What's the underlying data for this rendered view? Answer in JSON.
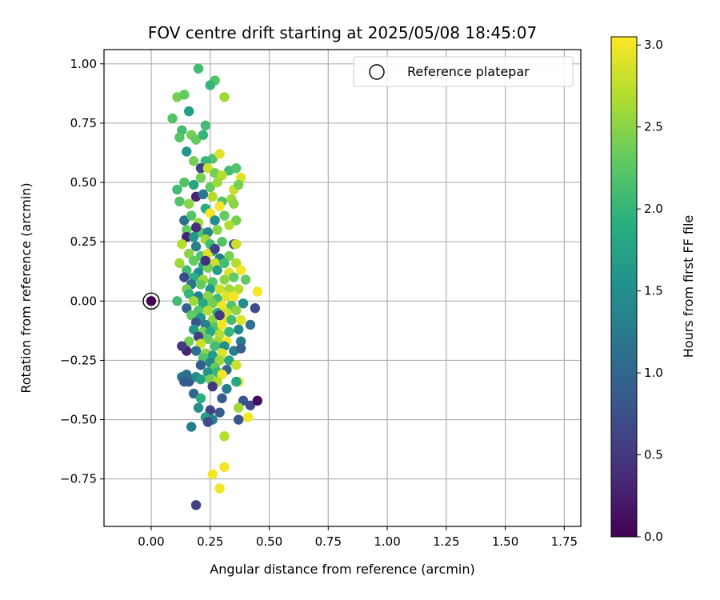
{
  "chart_data": {
    "type": "scatter",
    "title": "FOV centre drift starting at 2025/05/08 18:45:07",
    "xlabel": "Angular distance from reference (arcmin)",
    "ylabel": "Rotation from reference (arcmin)",
    "xlim": [
      -0.2,
      1.82
    ],
    "ylim": [
      -0.95,
      1.06
    ],
    "xticks": [
      "0.00",
      "0.25",
      "0.50",
      "0.75",
      "1.00",
      "1.25",
      "1.50",
      "1.75"
    ],
    "xtick_values": [
      0,
      0.25,
      0.5,
      0.75,
      1.0,
      1.25,
      1.5,
      1.75
    ],
    "yticks": [
      "−0.75",
      "−0.50",
      "−0.25",
      "0.00",
      "0.25",
      "0.50",
      "0.75",
      "1.00"
    ],
    "ytick_values": [
      -0.75,
      -0.5,
      -0.25,
      0,
      0.25,
      0.5,
      0.75,
      1.0
    ],
    "grid": true,
    "legend": {
      "placement": "top-right",
      "entries": [
        "Reference platepar"
      ]
    },
    "reference_point": {
      "x": 0.0,
      "y": 0.0,
      "hours": 0.0
    },
    "colorbar": {
      "label": "Hours from first FF file",
      "colormap": "viridis",
      "range": [
        0.0,
        3.05
      ],
      "ticks": [
        "0.0",
        "0.5",
        "1.0",
        "1.5",
        "2.0",
        "2.5",
        "3.0"
      ],
      "tick_values": [
        0,
        0.5,
        1.0,
        1.5,
        2.0,
        2.5,
        3.0
      ]
    },
    "series": [
      {
        "points": [
          [
            0.19,
            -0.86,
            0.6
          ],
          [
            0.2,
            0.98,
            2.1
          ],
          [
            0.27,
            0.93,
            2.2
          ],
          [
            0.25,
            0.91,
            2.0
          ],
          [
            0.31,
            0.86,
            2.6
          ],
          [
            0.11,
            0.86,
            2.4
          ],
          [
            0.14,
            0.87,
            2.3
          ],
          [
            0.09,
            0.77,
            2.2
          ],
          [
            0.16,
            0.8,
            1.7
          ],
          [
            0.13,
            0.72,
            2.1
          ],
          [
            0.17,
            0.7,
            2.4
          ],
          [
            0.23,
            0.74,
            2.1
          ],
          [
            0.12,
            0.69,
            2.2
          ],
          [
            0.19,
            0.68,
            2.3
          ],
          [
            0.22,
            0.7,
            2.0
          ],
          [
            0.15,
            0.63,
            1.6
          ],
          [
            0.18,
            0.59,
            2.4
          ],
          [
            0.26,
            0.6,
            2.2
          ],
          [
            0.29,
            0.62,
            2.9
          ],
          [
            0.23,
            0.59,
            2.0
          ],
          [
            0.33,
            0.55,
            2.1
          ],
          [
            0.36,
            0.56,
            2.2
          ],
          [
            0.38,
            0.52,
            2.9
          ],
          [
            0.21,
            0.56,
            0.6
          ],
          [
            0.24,
            0.56,
            2.8
          ],
          [
            0.27,
            0.54,
            2.4
          ],
          [
            0.3,
            0.53,
            2.7
          ],
          [
            0.14,
            0.5,
            2.2
          ],
          [
            0.18,
            0.49,
            1.8
          ],
          [
            0.21,
            0.52,
            2.4
          ],
          [
            0.11,
            0.47,
            2.1
          ],
          [
            0.25,
            0.48,
            2.3
          ],
          [
            0.28,
            0.5,
            2.6
          ],
          [
            0.35,
            0.47,
            2.8
          ],
          [
            0.37,
            0.49,
            2.4
          ],
          [
            0.19,
            0.44,
            0.3
          ],
          [
            0.22,
            0.45,
            1.2
          ],
          [
            0.12,
            0.42,
            2.2
          ],
          [
            0.16,
            0.41,
            2.5
          ],
          [
            0.26,
            0.44,
            2.7
          ],
          [
            0.3,
            0.42,
            2.2
          ],
          [
            0.34,
            0.43,
            2.6
          ],
          [
            0.29,
            0.4,
            3.0
          ],
          [
            0.35,
            0.41,
            2.5
          ],
          [
            0.23,
            0.39,
            1.9
          ],
          [
            0.25,
            0.37,
            3.0
          ],
          [
            0.31,
            0.36,
            2.3
          ],
          [
            0.14,
            0.34,
            1.1
          ],
          [
            0.17,
            0.36,
            2.2
          ],
          [
            0.2,
            0.33,
            2.6
          ],
          [
            0.27,
            0.34,
            1.5
          ],
          [
            0.36,
            0.34,
            2.4
          ],
          [
            0.33,
            0.32,
            2.7
          ],
          [
            0.15,
            0.3,
            2.3
          ],
          [
            0.21,
            0.29,
            2.2
          ],
          [
            0.24,
            0.29,
            1.4
          ],
          [
            0.28,
            0.3,
            2.5
          ],
          [
            0.15,
            0.27,
            0.3
          ],
          [
            0.18,
            0.27,
            1.6
          ],
          [
            0.23,
            0.26,
            2.6
          ],
          [
            0.25,
            0.24,
            2.1
          ],
          [
            0.3,
            0.25,
            2.2
          ],
          [
            0.35,
            0.24,
            0.8
          ],
          [
            0.36,
            0.24,
            2.8
          ],
          [
            0.13,
            0.24,
            2.7
          ],
          [
            0.19,
            0.23,
            1.3
          ],
          [
            0.26,
            0.21,
            1.9
          ],
          [
            0.16,
            0.2,
            2.5
          ],
          [
            0.21,
            0.19,
            2.2
          ],
          [
            0.24,
            0.2,
            2.9
          ],
          [
            0.33,
            0.19,
            2.4
          ],
          [
            0.29,
            0.18,
            1.3
          ],
          [
            0.18,
            0.17,
            2.3
          ],
          [
            0.22,
            0.15,
            1.8
          ],
          [
            0.12,
            0.16,
            2.6
          ],
          [
            0.27,
            0.16,
            2.8
          ],
          [
            0.31,
            0.16,
            2.1
          ],
          [
            0.36,
            0.16,
            2.7
          ],
          [
            0.15,
            0.13,
            2.1
          ],
          [
            0.2,
            0.12,
            1.5
          ],
          [
            0.24,
            0.14,
            2.4
          ],
          [
            0.28,
            0.13,
            1.7
          ],
          [
            0.33,
            0.12,
            2.9
          ],
          [
            0.38,
            0.13,
            3.0
          ],
          [
            0.14,
            0.1,
            0.7
          ],
          [
            0.18,
            0.1,
            1.9
          ],
          [
            0.22,
            0.09,
            2.6
          ],
          [
            0.26,
            0.08,
            2.2
          ],
          [
            0.31,
            0.09,
            2.5
          ],
          [
            0.35,
            0.1,
            2.3
          ],
          [
            0.4,
            0.09,
            2.3
          ],
          [
            0.17,
            0.07,
            1.1
          ],
          [
            0.21,
            0.07,
            2.3
          ],
          [
            0.15,
            0.05,
            2.4
          ],
          [
            0.25,
            0.05,
            1.6
          ],
          [
            0.29,
            0.05,
            2.8
          ],
          [
            0.33,
            0.05,
            2.6
          ],
          [
            0.37,
            0.05,
            2.7
          ],
          [
            0.16,
            0.03,
            2.0
          ],
          [
            0.2,
            0.02,
            1.4
          ],
          [
            0.24,
            0.02,
            2.5
          ],
          [
            0.28,
            0.01,
            2.1
          ],
          [
            0.32,
            0.02,
            2.9
          ],
          [
            0.35,
            0.02,
            3.0
          ],
          [
            0.45,
            0.04,
            3.0
          ],
          [
            0.11,
            0.0,
            2.1
          ],
          [
            0.18,
            0.0,
            2.6
          ],
          [
            0.22,
            -0.01,
            1.8
          ],
          [
            0.26,
            -0.01,
            2.4
          ],
          [
            0.3,
            -0.02,
            3.0
          ],
          [
            0.34,
            -0.02,
            2.2
          ],
          [
            0.39,
            -0.01,
            1.5
          ],
          [
            0.15,
            -0.03,
            1.0
          ],
          [
            0.2,
            -0.04,
            2.2
          ],
          [
            0.24,
            -0.04,
            2.7
          ],
          [
            0.28,
            -0.05,
            1.9
          ],
          [
            0.32,
            -0.05,
            2.8
          ],
          [
            0.36,
            -0.04,
            2.5
          ],
          [
            0.44,
            -0.03,
            0.7
          ],
          [
            0.17,
            -0.06,
            2.3
          ],
          [
            0.21,
            -0.07,
            1.6
          ],
          [
            0.26,
            -0.08,
            2.5
          ],
          [
            0.31,
            -0.07,
            2.9
          ],
          [
            0.34,
            -0.08,
            2.1
          ],
          [
            0.38,
            -0.08,
            2.9
          ],
          [
            0.19,
            -0.09,
            0.8
          ],
          [
            0.23,
            -0.1,
            1.3
          ],
          [
            0.27,
            -0.11,
            2.2
          ],
          [
            0.3,
            -0.1,
            3.0
          ],
          [
            0.42,
            -0.1,
            1.1
          ],
          [
            0.18,
            -0.12,
            1.6
          ],
          [
            0.22,
            -0.13,
            2.4
          ],
          [
            0.25,
            -0.13,
            1.8
          ],
          [
            0.29,
            -0.14,
            2.7
          ],
          [
            0.33,
            -0.13,
            2.0
          ],
          [
            0.37,
            -0.12,
            1.4
          ],
          [
            0.2,
            -0.15,
            0.6
          ],
          [
            0.24,
            -0.16,
            2.3
          ],
          [
            0.28,
            -0.17,
            2.6
          ],
          [
            0.32,
            -0.17,
            3.0
          ],
          [
            0.16,
            -0.17,
            2.4
          ],
          [
            0.38,
            -0.17,
            1.2
          ],
          [
            0.21,
            -0.18,
            2.8
          ],
          [
            0.27,
            -0.19,
            2.1
          ],
          [
            0.31,
            -0.19,
            1.5
          ],
          [
            0.15,
            -0.21,
            0.3
          ],
          [
            0.19,
            -0.21,
            1.1
          ],
          [
            0.23,
            -0.22,
            2.5
          ],
          [
            0.26,
            -0.23,
            1.7
          ],
          [
            0.3,
            -0.22,
            2.9
          ],
          [
            0.35,
            -0.21,
            1.3
          ],
          [
            0.38,
            -0.2,
            0.9
          ],
          [
            0.22,
            -0.24,
            2.2
          ],
          [
            0.25,
            -0.26,
            1.4
          ],
          [
            0.29,
            -0.25,
            2.6
          ],
          [
            0.33,
            -0.25,
            1.8
          ],
          [
            0.21,
            -0.27,
            0.9
          ],
          [
            0.27,
            -0.28,
            2.3
          ],
          [
            0.32,
            -0.29,
            1.0
          ],
          [
            0.36,
            -0.27,
            2.8
          ],
          [
            0.24,
            -0.3,
            1.6
          ],
          [
            0.28,
            -0.3,
            2.0
          ],
          [
            0.3,
            -0.31,
            3.0
          ],
          [
            0.13,
            -0.32,
            1.2
          ],
          [
            0.16,
            -0.34,
            0.8
          ],
          [
            0.19,
            -0.32,
            1.4
          ],
          [
            0.21,
            -0.33,
            1.7
          ],
          [
            0.25,
            -0.33,
            2.4
          ],
          [
            0.28,
            -0.34,
            2.7
          ],
          [
            0.15,
            -0.31,
            1.1
          ],
          [
            0.37,
            -0.34,
            2.9
          ],
          [
            0.36,
            -0.34,
            1.8
          ],
          [
            0.26,
            -0.36,
            0.5
          ],
          [
            0.32,
            -0.37,
            1.3
          ],
          [
            0.18,
            -0.39,
            1.0
          ],
          [
            0.21,
            -0.41,
            1.9
          ],
          [
            0.3,
            -0.41,
            0.9
          ],
          [
            0.39,
            -0.42,
            0.8
          ],
          [
            0.42,
            -0.44,
            0.7
          ],
          [
            0.45,
            -0.42,
            0.1
          ],
          [
            0.2,
            -0.45,
            1.5
          ],
          [
            0.25,
            -0.46,
            0.6
          ],
          [
            0.29,
            -0.47,
            0.9
          ],
          [
            0.37,
            -0.45,
            2.6
          ],
          [
            0.41,
            -0.49,
            3.0
          ],
          [
            0.23,
            -0.49,
            1.7
          ],
          [
            0.26,
            -0.5,
            1.3
          ],
          [
            0.24,
            -0.51,
            0.7
          ],
          [
            0.37,
            -0.5,
            0.8
          ],
          [
            0.17,
            -0.53,
            1.3
          ],
          [
            0.31,
            -0.57,
            2.7
          ],
          [
            0.31,
            -0.7,
            3.0
          ],
          [
            0.26,
            -0.73,
            3.0
          ],
          [
            0.29,
            -0.79,
            3.0
          ],
          [
            0.14,
            -0.34,
            0.9
          ],
          [
            0.13,
            -0.19,
            0.5
          ],
          [
            0.23,
            0.17,
            0.4
          ],
          [
            0.27,
            0.22,
            0.6
          ],
          [
            0.19,
            0.31,
            0.4
          ],
          [
            0.29,
            -0.06,
            0.5
          ]
        ]
      }
    ]
  }
}
